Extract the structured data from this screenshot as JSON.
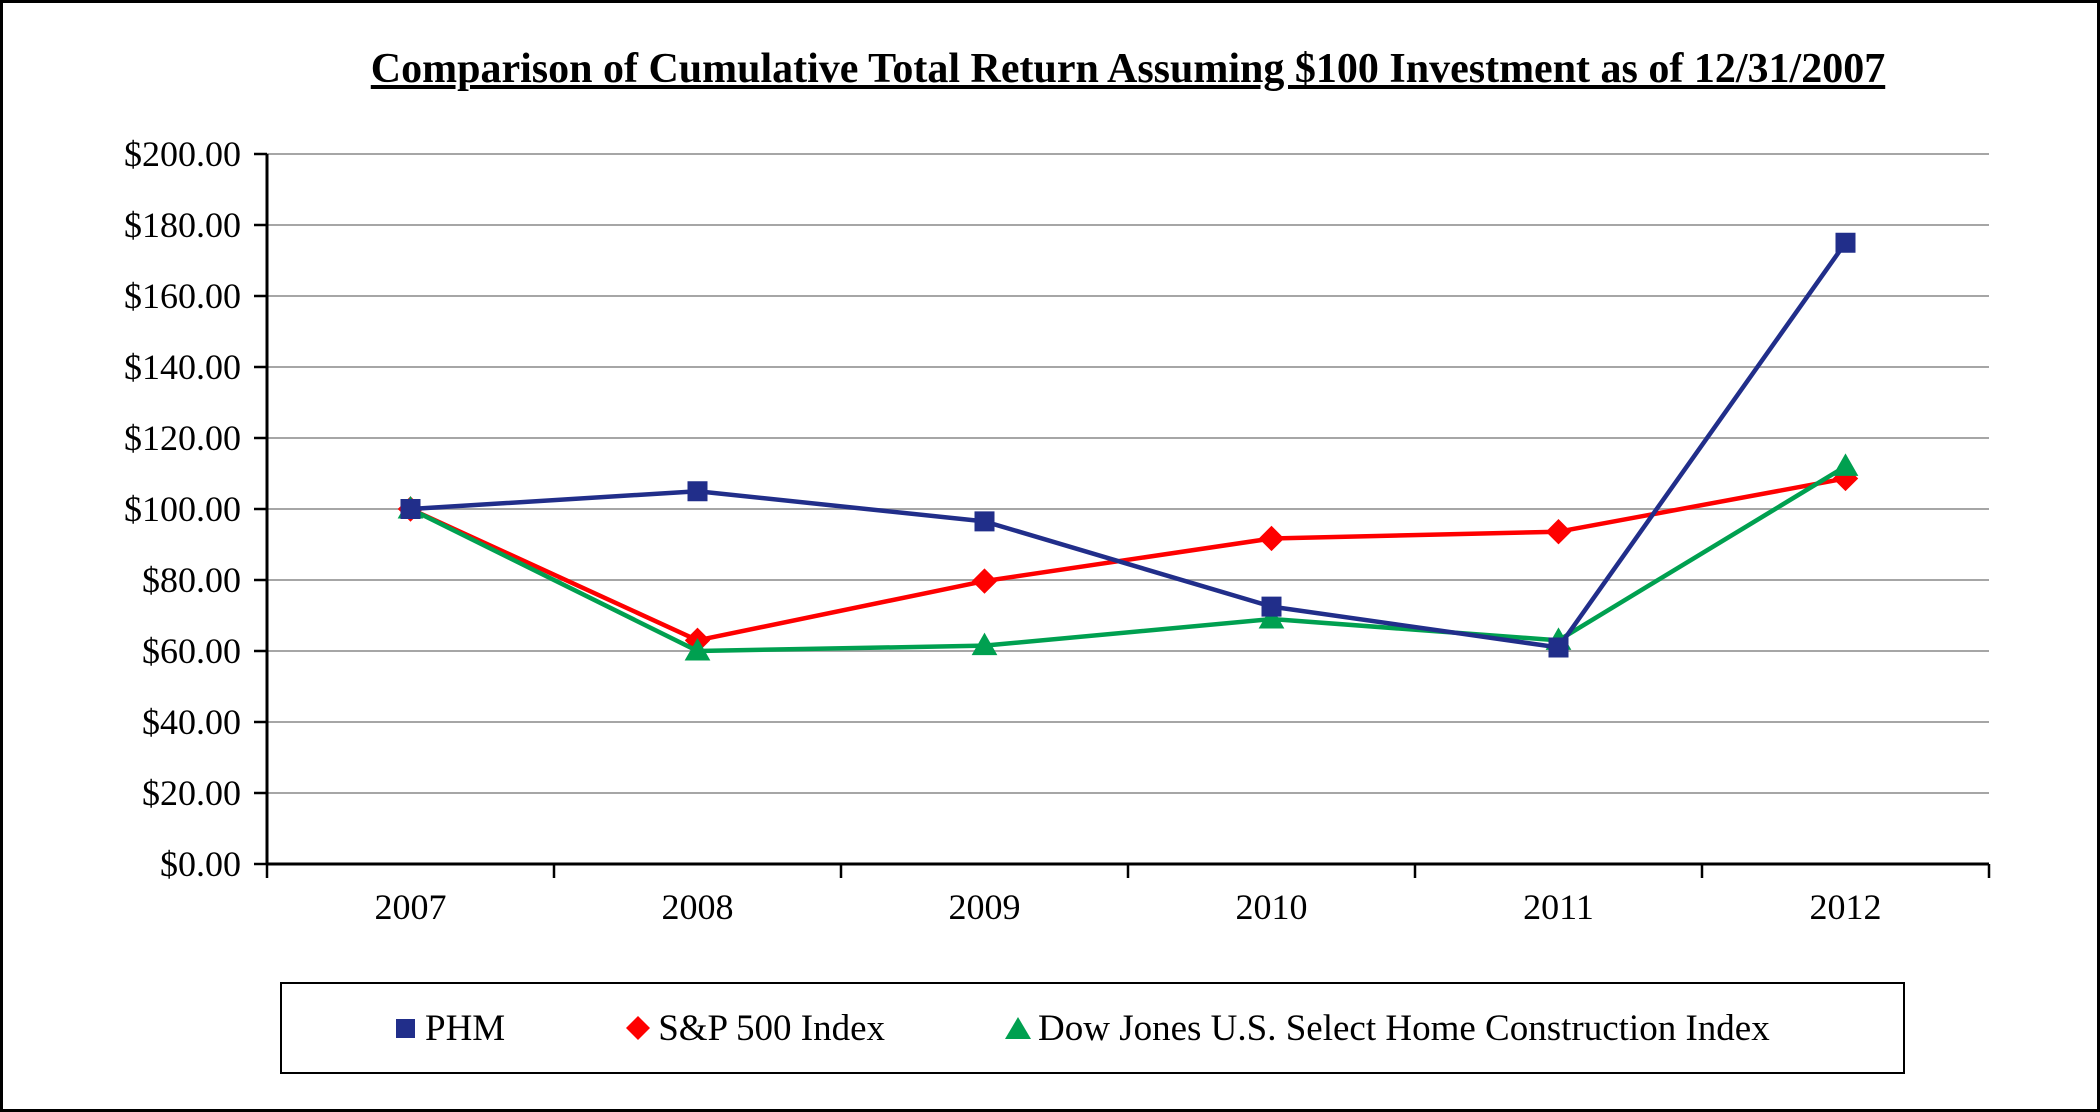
{
  "chart_data": {
    "type": "line",
    "title": "Comparison of Cumulative Total Return Assuming $100 Investment as of 12/31/2007",
    "categories": [
      "2007",
      "2008",
      "2009",
      "2010",
      "2011",
      "2012"
    ],
    "series": [
      {
        "name": "PHM",
        "marker": "square",
        "color": "#212E8A",
        "values": [
          100.0,
          105.0,
          96.5,
          72.5,
          61.0,
          175.0
        ]
      },
      {
        "name": "S&P 500 Index",
        "marker": "diamond",
        "color": "#FE0000",
        "values": [
          100.0,
          63.0,
          79.7,
          91.7,
          93.6,
          108.6
        ]
      },
      {
        "name": "Dow Jones U.S. Select Home Construction Index",
        "marker": "triangle",
        "color": "#00A050",
        "values": [
          100.0,
          60.0,
          61.5,
          69.0,
          63.0,
          112.0
        ]
      }
    ],
    "ylim": [
      0,
      200
    ],
    "y_ticks": [
      {
        "value": 0,
        "label": "$0.00"
      },
      {
        "value": 20,
        "label": "$20.00"
      },
      {
        "value": 40,
        "label": "$40.00"
      },
      {
        "value": 60,
        "label": "$60.00"
      },
      {
        "value": 80,
        "label": "$80.00"
      },
      {
        "value": 100,
        "label": "$100.00"
      },
      {
        "value": 120,
        "label": "$120.00"
      },
      {
        "value": 140,
        "label": "$140.00"
      },
      {
        "value": 160,
        "label": "$160.00"
      },
      {
        "value": 180,
        "label": "$180.00"
      },
      {
        "value": 200,
        "label": "$200.00"
      }
    ],
    "grid": true,
    "grid_color": "#A6A6A6",
    "axis_color": "#000000",
    "legend_position": "bottom"
  }
}
